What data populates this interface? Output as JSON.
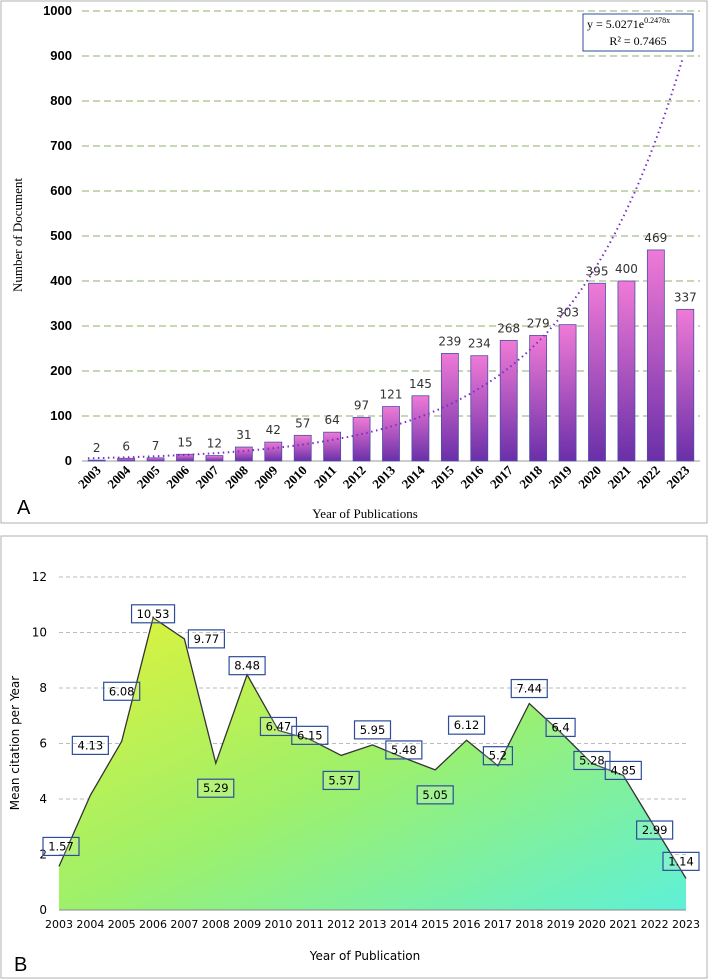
{
  "chart_data": [
    {
      "type": "bar",
      "panel_label": "A",
      "xlabel": "Year of Publications",
      "ylabel": "Number of Document",
      "ylim": [
        0,
        1000
      ],
      "yticks": [
        0,
        100,
        200,
        300,
        400,
        500,
        600,
        700,
        800,
        900,
        1000
      ],
      "categories": [
        "2003",
        "2004",
        "2005",
        "2006",
        "2007",
        "2008",
        "2009",
        "2010",
        "2011",
        "2012",
        "2013",
        "2014",
        "2015",
        "2016",
        "2017",
        "2018",
        "2019",
        "2020",
        "2021",
        "2022",
        "2023"
      ],
      "values": [
        2,
        6,
        7,
        15,
        12,
        31,
        42,
        57,
        64,
        97,
        121,
        145,
        239,
        234,
        268,
        279,
        303,
        395,
        400,
        469,
        337
      ],
      "data_labels": [
        "2",
        "6",
        "7",
        "15",
        "12",
        "31",
        "42",
        "57",
        "64",
        "97",
        "121",
        "145",
        "239",
        "234",
        "268",
        "279",
        "303",
        "395",
        "400",
        "469",
        "337"
      ],
      "trendline": {
        "type": "exponential",
        "a": 5.0271,
        "b": 0.2478,
        "equation_text": "y = 5.0271e",
        "equation_exponent": "0.2478x",
        "r2_text": "R² = 0.7465"
      },
      "colors": {
        "bar_top": "#f07ad6",
        "bar_bottom": "#6a2fa8",
        "bar_stroke": "#4a4fa8",
        "trend": "#7b2fbf",
        "grid": "#8fae6a"
      },
      "grid": true
    },
    {
      "type": "area",
      "panel_label": "B",
      "xlabel": "Year of Publication",
      "ylabel": "Mean citation per Year",
      "ylim": [
        0,
        12
      ],
      "yticks": [
        0,
        2,
        4,
        6,
        8,
        10,
        12
      ],
      "categories": [
        "2003",
        "2004",
        "2005",
        "2006",
        "2007",
        "2008",
        "2009",
        "2010",
        "2011",
        "2012",
        "2013",
        "2014",
        "2015",
        "2016",
        "2017",
        "2018",
        "2019",
        "2020",
        "2021",
        "2022",
        "2023"
      ],
      "values": [
        1.57,
        4.13,
        6.08,
        10.53,
        9.77,
        5.29,
        8.48,
        6.47,
        6.15,
        5.57,
        5.95,
        5.48,
        5.05,
        6.12,
        5.2,
        7.44,
        6.4,
        5.28,
        4.85,
        2.99,
        1.14
      ],
      "data_labels": [
        "1.57",
        "4.13",
        "6.08",
        "10.53",
        "9.77",
        "5.29",
        "8.48",
        "6.47",
        "6.15",
        "5.57",
        "5.95",
        "5.48",
        "5.05",
        "6.12",
        "5.2",
        "7.44",
        "6.4",
        "5.28",
        "4.85",
        "2.99",
        "1.14"
      ],
      "colors": {
        "fill_start": "#e0f23a",
        "fill_mid": "#9ef06a",
        "fill_end": "#5ef0d8",
        "line": "#333333",
        "label_border": "#2d4d9a",
        "grid": "#bbbbbb"
      },
      "grid": true
    }
  ]
}
